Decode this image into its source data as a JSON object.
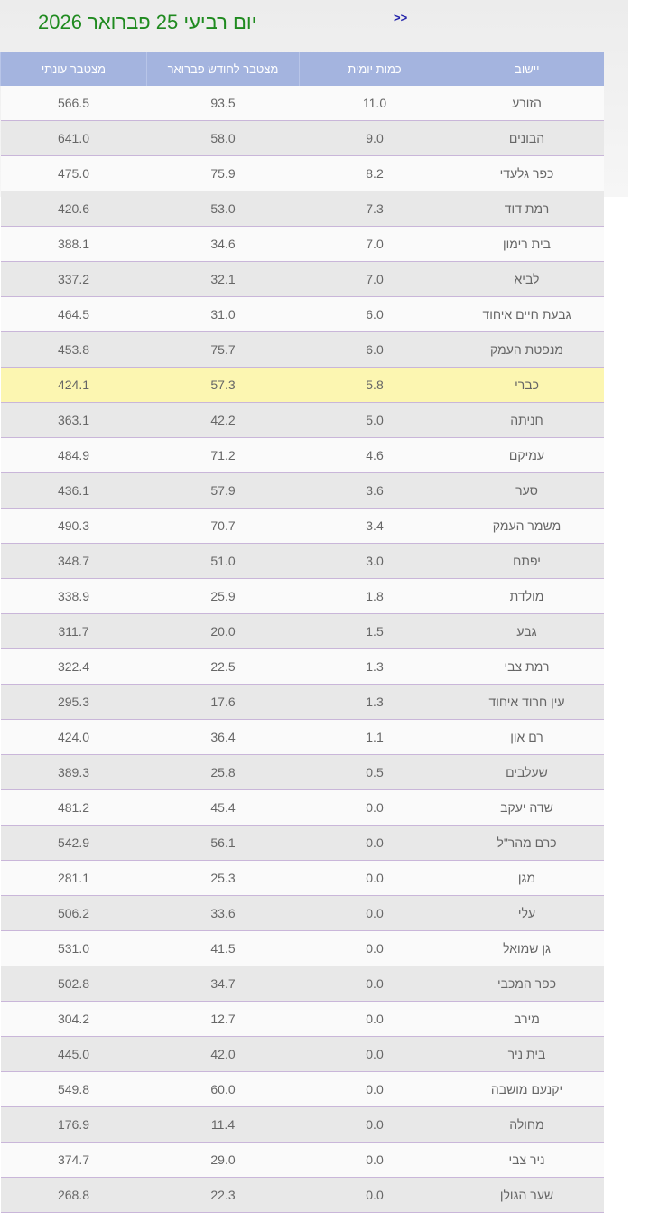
{
  "header": {
    "title": "יום רביעי 25 פברואר 2026",
    "next_label": ">>"
  },
  "table": {
    "columns": [
      "יישוב",
      "כמות יומית",
      "מצטבר לחודש פברואר",
      "מצטבר עונתי"
    ],
    "highlight_color": "#fcf6b1",
    "highlighted_row": "כברי",
    "rows": [
      [
        "הזורע",
        "11.0",
        "93.5",
        "566.5"
      ],
      [
        "הבונים",
        "9.0",
        "58.0",
        "641.0"
      ],
      [
        "כפר גלעדי",
        "8.2",
        "75.9",
        "475.0"
      ],
      [
        "רמת דוד",
        "7.3",
        "53.0",
        "420.6"
      ],
      [
        "בית רימון",
        "7.0",
        "34.6",
        "388.1"
      ],
      [
        "לביא",
        "7.0",
        "32.1",
        "337.2"
      ],
      [
        "גבעת חיים איחוד",
        "6.0",
        "31.0",
        "464.5"
      ],
      [
        "מנפטת העמק",
        "6.0",
        "75.7",
        "453.8"
      ],
      [
        "כברי",
        "5.8",
        "57.3",
        "424.1"
      ],
      [
        "חניתה",
        "5.0",
        "42.2",
        "363.1"
      ],
      [
        "עמיקם",
        "4.6",
        "71.2",
        "484.9"
      ],
      [
        "סער",
        "3.6",
        "57.9",
        "436.1"
      ],
      [
        "משמר העמק",
        "3.4",
        "70.7",
        "490.3"
      ],
      [
        "יפתח",
        "3.0",
        "51.0",
        "348.7"
      ],
      [
        "מולדת",
        "1.8",
        "25.9",
        "338.9"
      ],
      [
        "גבע",
        "1.5",
        "20.0",
        "311.7"
      ],
      [
        "רמת צבי",
        "1.3",
        "22.5",
        "322.4"
      ],
      [
        "עין חרוד איחוד",
        "1.3",
        "17.6",
        "295.3"
      ],
      [
        "רם און",
        "1.1",
        "36.4",
        "424.0"
      ],
      [
        "שעלבים",
        "0.5",
        "25.8",
        "389.3"
      ],
      [
        "שדה יעקב",
        "0.0",
        "45.4",
        "481.2"
      ],
      [
        "כרם מהר\"ל",
        "0.0",
        "56.1",
        "542.9"
      ],
      [
        "מגן",
        "0.0",
        "25.3",
        "281.1"
      ],
      [
        "עלי",
        "0.0",
        "33.6",
        "506.2"
      ],
      [
        "גן שמואל",
        "0.0",
        "41.5",
        "531.0"
      ],
      [
        "כפר המכבי",
        "0.0",
        "34.7",
        "502.8"
      ],
      [
        "מירב",
        "0.0",
        "12.7",
        "304.2"
      ],
      [
        "בית ניר",
        "0.0",
        "42.0",
        "445.0"
      ],
      [
        "יקנעם מושבה",
        "0.0",
        "60.0",
        "549.8"
      ],
      [
        "מחולה",
        "0.0",
        "11.4",
        "176.9"
      ],
      [
        "ניר צבי",
        "0.0",
        "29.0",
        "374.7"
      ],
      [
        "שער הגולן",
        "0.0",
        "22.3",
        "268.8"
      ]
    ]
  }
}
